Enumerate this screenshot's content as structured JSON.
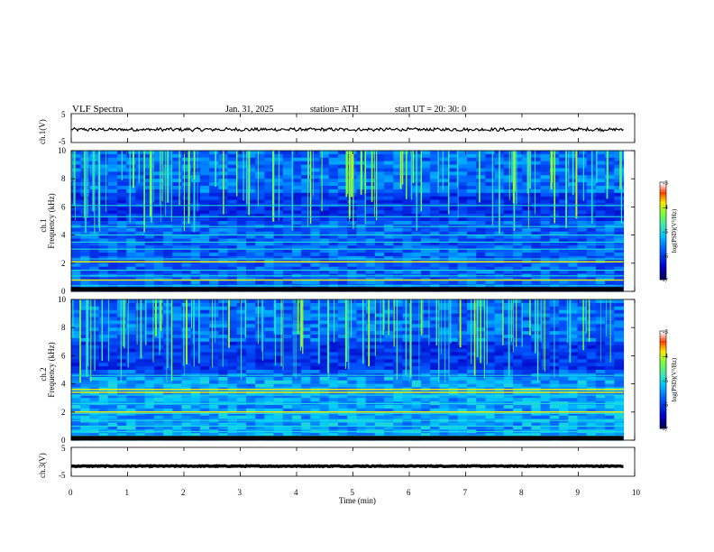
{
  "header": {
    "title": "VLF  Spectra",
    "date": "Jan.  31,  2025",
    "station": "station= ATH",
    "start_ut": "start  UT  =    20: 30: 0"
  },
  "chart_data": [
    {
      "type": "line",
      "panel": "ch1-waveform",
      "ylabel": "ch.1(V)",
      "yticks": [
        "5",
        "-5"
      ],
      "ylim": [
        -5,
        5
      ],
      "xlim": [
        0,
        10
      ],
      "series": [
        {
          "x_range": [
            0,
            9.8
          ],
          "approx_level": -0.5,
          "noise_amplitude": 0.5
        }
      ]
    },
    {
      "type": "heatmap",
      "panel": "ch1-spectrogram",
      "ylabel_line1": "ch.1",
      "ylabel_line2": "Frequency  (kHz)",
      "yticks": [
        "0",
        "2",
        "4",
        "6",
        "8",
        "10"
      ],
      "ylim": [
        0,
        10
      ],
      "xlim": [
        0,
        10
      ],
      "data_x_range": [
        0,
        9.8
      ],
      "colorbar": {
        "label": "log(PSD)(V²/Hz)",
        "ticks": [
          "-3",
          "-4",
          "-5",
          "-6",
          "-7"
        ],
        "range": [
          -7,
          -3
        ]
      },
      "horizontal_lines_khz": [
        0.4,
        0.8,
        1.1,
        1.5,
        2.1,
        2.3,
        3.0,
        3.5,
        4.0,
        4.6,
        5.3,
        6.1
      ],
      "bright_lines_khz": [
        0.8,
        2.1
      ]
    },
    {
      "type": "heatmap",
      "panel": "ch2-spectrogram",
      "ylabel_line1": "ch.2",
      "ylabel_line2": "Frequency  (kHz)",
      "yticks": [
        "0",
        "2",
        "4",
        "6",
        "8",
        "10"
      ],
      "ylim": [
        0,
        10
      ],
      "xlim": [
        0,
        10
      ],
      "data_x_range": [
        0,
        9.8
      ],
      "colorbar": {
        "label": "log(PSD)(V²/Hz)",
        "ticks": [
          "-3",
          "-4",
          "-5",
          "-6",
          "-7"
        ],
        "range": [
          -7,
          -3
        ]
      },
      "horizontal_lines_khz": [
        0.3,
        0.6,
        1.0,
        1.4,
        1.9,
        2.0,
        2.6,
        3.2,
        3.4,
        3.6,
        4.6
      ],
      "bright_lines_khz": [
        2.0,
        3.4,
        3.6
      ]
    },
    {
      "type": "line",
      "panel": "ch3-waveform",
      "ylabel": "ch.3(V)",
      "yticks": [
        "5",
        "-5"
      ],
      "ylim": [
        -5,
        5
      ],
      "xlim": [
        0,
        10
      ],
      "series": [
        {
          "x_range": [
            0,
            9.8
          ],
          "approx_level": -1.5,
          "noise_amplitude": 0.15
        }
      ]
    }
  ],
  "xaxis": {
    "label": "Time  (min)",
    "ticks": [
      "0",
      "1",
      "2",
      "3",
      "4",
      "5",
      "6",
      "7",
      "8",
      "9",
      "10"
    ]
  }
}
